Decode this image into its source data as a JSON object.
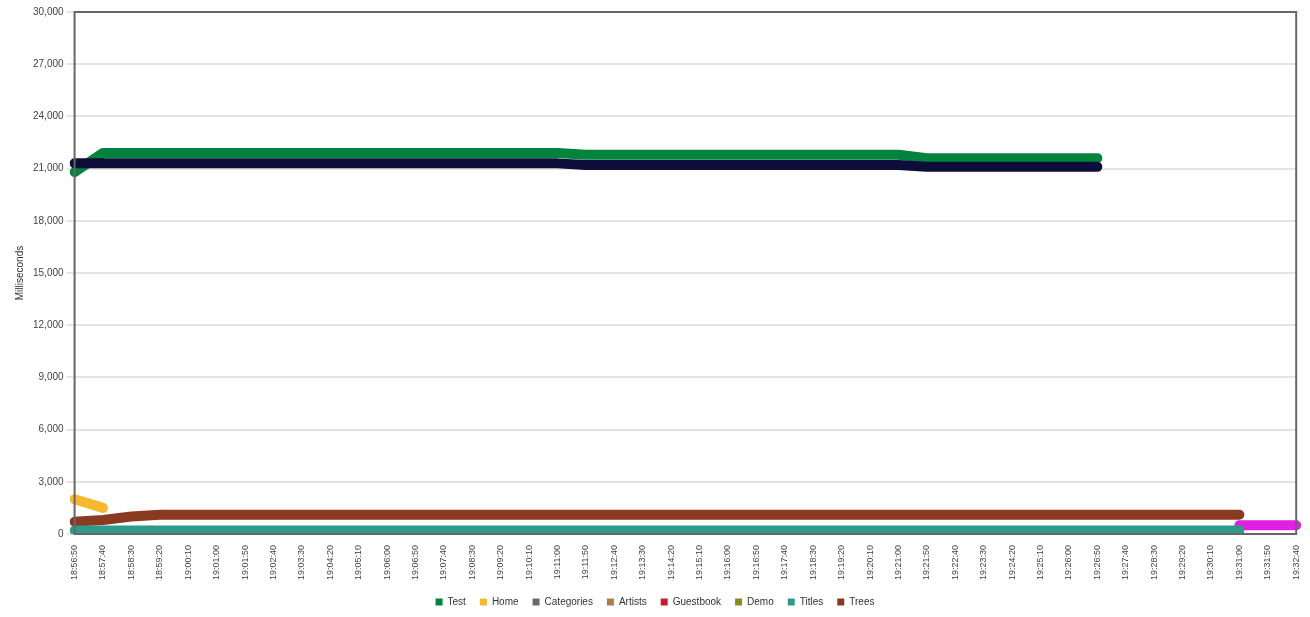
{
  "chart_data": {
    "type": "line",
    "ylabel": "Milliseconds",
    "grid": "y",
    "legend": "bottom",
    "marker": "none",
    "line_style": "solid",
    "categories": [
      "18:56:50",
      "18:57:40",
      "18:58:30",
      "18:59:20",
      "19:00:10",
      "19:01:00",
      "19:01:50",
      "19:02:40",
      "19:03:30",
      "19:04:20",
      "19:05:10",
      "19:06:00",
      "19:06:50",
      "19:07:40",
      "19:08:30",
      "19:09:20",
      "19:10:10",
      "19:11:00",
      "19:11:50",
      "19:12:40",
      "19:13:30",
      "19:14:20",
      "19:15:10",
      "19:16:00",
      "19:16:50",
      "19:17:40",
      "19:18:30",
      "19:19:20",
      "19:20:10",
      "19:21:00",
      "19:21:50",
      "19:22:40",
      "19:23:30",
      "19:24:20",
      "19:25:10",
      "19:26:00",
      "19:26:50",
      "19:27:40",
      "19:28:30",
      "19:29:20",
      "19:30:10",
      "19:31:00",
      "19:31:50",
      "19:32:40"
    ],
    "ylim": [
      0,
      30000
    ],
    "yticks": [
      {
        "value": 0,
        "label": "0"
      },
      {
        "value": 3000,
        "label": "3,000"
      },
      {
        "value": 6000,
        "label": "6,000"
      },
      {
        "value": 9000,
        "label": "9,000"
      },
      {
        "value": 12000,
        "label": "12,000"
      },
      {
        "value": 15000,
        "label": "15,000"
      },
      {
        "value": 18000,
        "label": "18,000"
      },
      {
        "value": 21000,
        "label": "21,000"
      },
      {
        "value": 24000,
        "label": "24,000"
      },
      {
        "value": 27000,
        "label": "27,000"
      },
      {
        "value": 30000,
        "label": "30,000"
      }
    ],
    "series": [
      {
        "color": "#0d0d3a",
        "values": [
          21300,
          21300,
          21300,
          21300,
          21300,
          21300,
          21300,
          21300,
          21300,
          21300,
          21300,
          21300,
          21300,
          21300,
          21300,
          21300,
          21300,
          21300,
          21200,
          21200,
          21200,
          21200,
          21200,
          21200,
          21200,
          21200,
          21200,
          21200,
          21200,
          21200,
          21100,
          21100,
          21100,
          21100,
          21100,
          21100,
          21100,
          null,
          null,
          null,
          null,
          null,
          null,
          null
        ]
      },
      {
        "name": "Test",
        "color": "#00843d",
        "values": [
          20800,
          21900,
          21900,
          21900,
          21900,
          21900,
          21900,
          21900,
          21900,
          21900,
          21900,
          21900,
          21900,
          21900,
          21900,
          21900,
          21900,
          21900,
          21800,
          21800,
          21800,
          21800,
          21800,
          21800,
          21800,
          21800,
          21800,
          21800,
          21800,
          21800,
          21600,
          21600,
          21600,
          21600,
          21600,
          21600,
          21600,
          null,
          null,
          null,
          null,
          null,
          null,
          null
        ]
      },
      {
        "name": "Home",
        "color": "#f5b82e",
        "values": [
          2000,
          1500,
          null,
          null,
          null,
          null,
          null,
          null,
          null,
          null,
          null,
          null,
          null,
          null,
          null,
          null,
          null,
          null,
          null,
          null,
          null,
          null,
          null,
          null,
          null,
          null,
          null,
          null,
          null,
          null,
          null,
          null,
          null,
          null,
          null,
          null,
          null,
          null,
          null,
          null,
          null,
          null,
          null,
          null
        ]
      },
      {
        "name": "Categories",
        "color": "#6b6b6b",
        "values": [
          null,
          null,
          null,
          null,
          null,
          null,
          null,
          null,
          null,
          null,
          null,
          null,
          null,
          null,
          null,
          null,
          null,
          null,
          null,
          null,
          null,
          null,
          null,
          null,
          null,
          null,
          null,
          null,
          null,
          null,
          null,
          null,
          null,
          null,
          null,
          null,
          null,
          null,
          null,
          null,
          null,
          null,
          null,
          null
        ]
      },
      {
        "name": "Artists",
        "color": "#b07a4a",
        "values": [
          null,
          null,
          null,
          null,
          null,
          null,
          null,
          null,
          null,
          null,
          null,
          null,
          null,
          null,
          null,
          null,
          null,
          null,
          null,
          null,
          null,
          null,
          null,
          null,
          null,
          null,
          null,
          null,
          null,
          null,
          null,
          null,
          null,
          null,
          null,
          null,
          null,
          null,
          null,
          null,
          null,
          null,
          null,
          null
        ]
      },
      {
        "name": "Guestbook",
        "color": "#c0202a",
        "values": [
          null,
          null,
          null,
          null,
          null,
          null,
          null,
          null,
          null,
          null,
          null,
          null,
          null,
          null,
          null,
          null,
          null,
          null,
          null,
          null,
          null,
          null,
          null,
          null,
          null,
          null,
          null,
          null,
          null,
          null,
          null,
          null,
          null,
          null,
          null,
          null,
          null,
          null,
          null,
          null,
          null,
          null,
          null,
          null
        ]
      },
      {
        "name": "Demo",
        "color": "#8a8a1a",
        "values": [
          null,
          null,
          null,
          null,
          null,
          null,
          null,
          null,
          null,
          null,
          null,
          null,
          null,
          null,
          null,
          null,
          null,
          null,
          null,
          null,
          null,
          null,
          null,
          null,
          null,
          null,
          null,
          null,
          null,
          null,
          null,
          null,
          null,
          null,
          null,
          null,
          null,
          null,
          null,
          null,
          null,
          null,
          null,
          null
        ]
      },
      {
        "name": "Titles",
        "color": "#2e9a8a",
        "values": [
          200,
          200,
          200,
          200,
          200,
          200,
          200,
          200,
          200,
          200,
          200,
          200,
          200,
          200,
          200,
          200,
          200,
          200,
          200,
          200,
          200,
          200,
          200,
          200,
          200,
          200,
          200,
          200,
          200,
          200,
          200,
          200,
          200,
          200,
          200,
          200,
          200,
          200,
          200,
          200,
          200,
          200,
          null,
          null
        ]
      },
      {
        "name": "Trees",
        "color": "#8b3a22",
        "values": [
          700,
          800,
          1000,
          1100,
          1100,
          1100,
          1100,
          1100,
          1100,
          1100,
          1100,
          1100,
          1100,
          1100,
          1100,
          1100,
          1100,
          1100,
          1100,
          1100,
          1100,
          1100,
          1100,
          1100,
          1100,
          1100,
          1100,
          1100,
          1100,
          1100,
          1100,
          1100,
          1100,
          1100,
          1100,
          1100,
          1100,
          1100,
          1100,
          1100,
          1100,
          1100,
          null,
          null
        ]
      },
      {
        "color": "#e020e0",
        "values": [
          null,
          null,
          null,
          null,
          null,
          null,
          null,
          null,
          null,
          null,
          null,
          null,
          null,
          null,
          null,
          null,
          null,
          null,
          null,
          null,
          null,
          null,
          null,
          null,
          null,
          null,
          null,
          null,
          null,
          null,
          null,
          null,
          null,
          null,
          null,
          null,
          null,
          null,
          null,
          null,
          null,
          500,
          500,
          500
        ]
      }
    ]
  }
}
